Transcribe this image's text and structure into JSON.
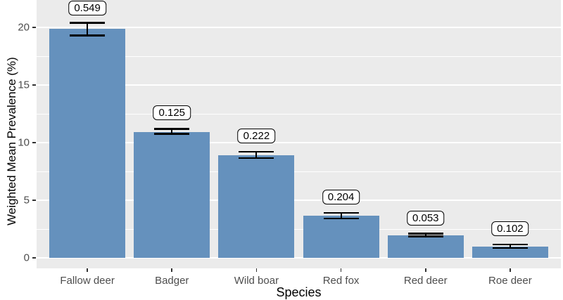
{
  "chart_data": {
    "type": "bar",
    "title": "",
    "xlabel": "Species",
    "ylabel": "Weighted Mean Prevalence (%)",
    "categories": [
      "Fallow deer",
      "Badger",
      "Wild boar",
      "Red fox",
      "Red deer",
      "Roe deer"
    ],
    "values": [
      19.9,
      10.9,
      8.9,
      3.65,
      1.95,
      1.0
    ],
    "ci_low": [
      19.3,
      10.75,
      8.65,
      3.4,
      1.85,
      0.85
    ],
    "ci_high": [
      20.4,
      11.2,
      9.2,
      3.9,
      2.1,
      1.15
    ],
    "bar_labels": [
      "0.549",
      "0.125",
      "0.222",
      "0.204",
      "0.053",
      "0.102"
    ],
    "yticks": [
      0,
      5,
      10,
      15,
      20
    ],
    "yticks_minor": [
      2.5,
      7.5,
      12.5,
      17.5,
      22.5
    ],
    "ylim": [
      -0.9,
      22.4
    ],
    "grid": "major-and-minor-white-on-gray",
    "legend": "none",
    "colors": {
      "bar_fill": "#6591BD",
      "panel_background": "#EBEBEB",
      "gridline": "#FFFFFF",
      "tick_text": "#4D4D4D",
      "axis_title_text": "#000000",
      "error_bar": "#000000",
      "label_box_background": "#FFFFFF",
      "label_box_border": "#000000"
    }
  }
}
